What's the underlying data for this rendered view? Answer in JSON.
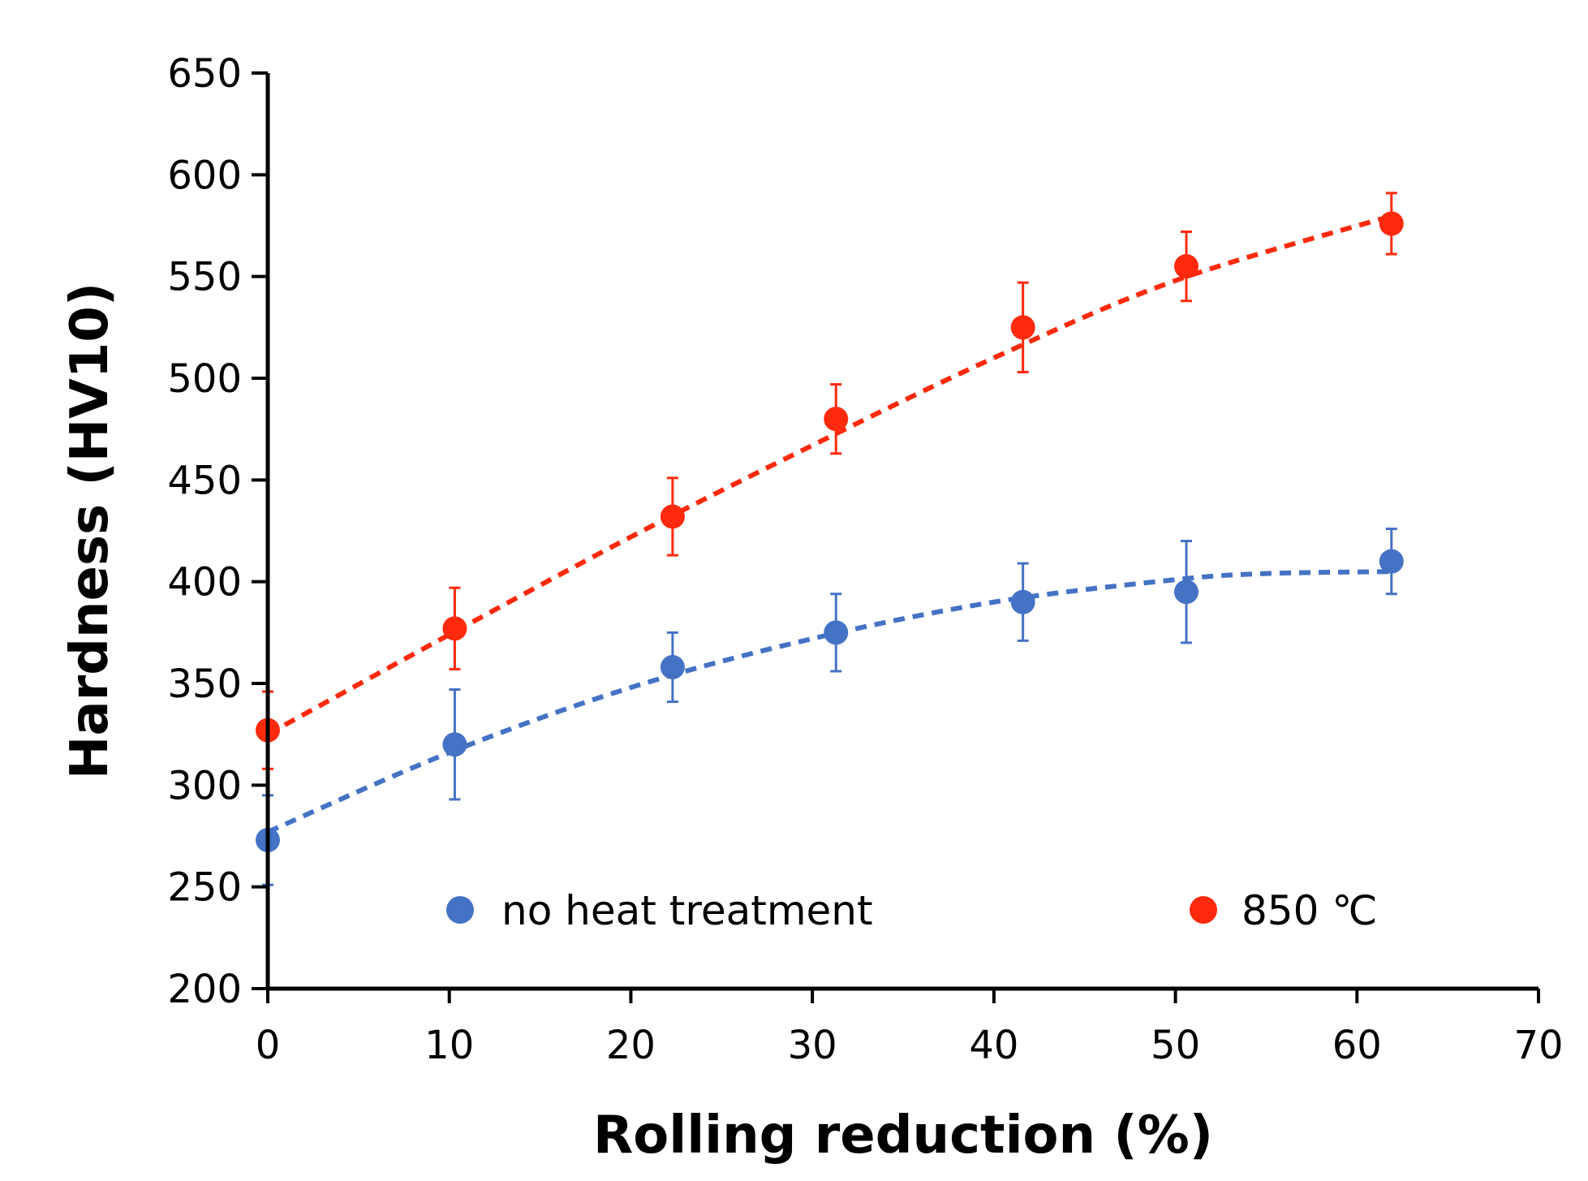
{
  "chart_data": {
    "type": "scatter",
    "title": "",
    "xlabel": "Rolling reduction (%)",
    "ylabel": "Hardness (HV10)",
    "xlim": [
      0,
      70
    ],
    "ylim": [
      200,
      650
    ],
    "xticks": [
      0,
      10,
      20,
      30,
      40,
      50,
      60,
      70
    ],
    "yticks": [
      200,
      250,
      300,
      350,
      400,
      450,
      500,
      550,
      600,
      650
    ],
    "grid": false,
    "legend_position": "bottom-inside",
    "series": [
      {
        "name": "no heat treatment",
        "color": "#4472C4",
        "trendline": "dashed",
        "points": [
          {
            "x": 0,
            "y": 273,
            "err": 22
          },
          {
            "x": 10.3,
            "y": 320,
            "err": 27
          },
          {
            "x": 22.3,
            "y": 358,
            "err": 17
          },
          {
            "x": 31.3,
            "y": 375,
            "err": 19
          },
          {
            "x": 41.6,
            "y": 390,
            "err": 19
          },
          {
            "x": 50.6,
            "y": 395,
            "err": 25
          },
          {
            "x": 61.9,
            "y": 410,
            "err": 16
          }
        ],
        "trend": [
          {
            "x": 0,
            "y": 277
          },
          {
            "x": 10,
            "y": 316
          },
          {
            "x": 20,
            "y": 348
          },
          {
            "x": 30,
            "y": 372
          },
          {
            "x": 40,
            "y": 390
          },
          {
            "x": 50,
            "y": 401
          },
          {
            "x": 55,
            "y": 404
          },
          {
            "x": 62,
            "y": 405
          }
        ]
      },
      {
        "name": "850 ℃",
        "color": "#FF2A0D",
        "trendline": "dashed",
        "points": [
          {
            "x": 0,
            "y": 327,
            "err": 19
          },
          {
            "x": 10.3,
            "y": 377,
            "err": 20
          },
          {
            "x": 22.3,
            "y": 432,
            "err": 19
          },
          {
            "x": 31.3,
            "y": 480,
            "err": 17
          },
          {
            "x": 41.6,
            "y": 525,
            "err": 22
          },
          {
            "x": 50.6,
            "y": 555,
            "err": 17
          },
          {
            "x": 61.9,
            "y": 576,
            "err": 15
          }
        ],
        "trend": [
          {
            "x": 0,
            "y": 325
          },
          {
            "x": 10,
            "y": 374
          },
          {
            "x": 20,
            "y": 422
          },
          {
            "x": 30,
            "y": 467
          },
          {
            "x": 40,
            "y": 510
          },
          {
            "x": 50,
            "y": 548
          },
          {
            "x": 62,
            "y": 580
          }
        ]
      }
    ]
  }
}
